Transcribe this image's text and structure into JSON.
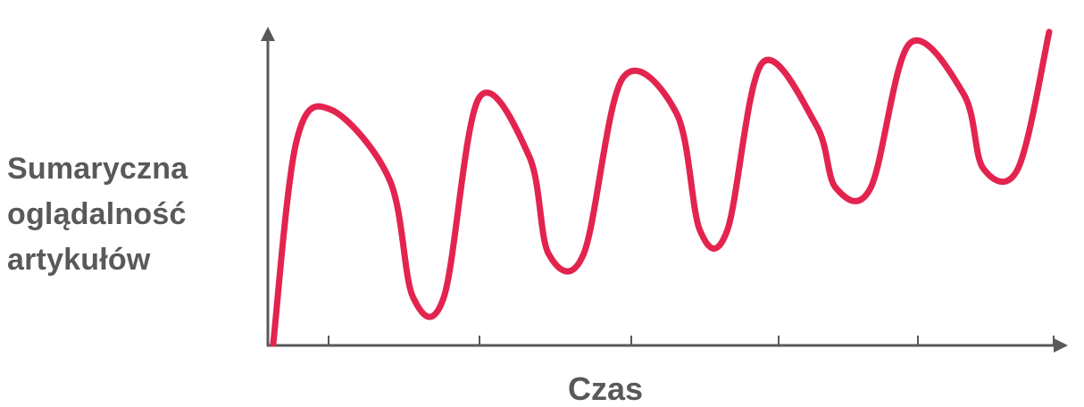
{
  "chart_data": {
    "type": "line",
    "title": "",
    "ylabel_lines": [
      "Sumaryczna",
      "oglądalność",
      "artykułów"
    ],
    "xlabel": "Czas",
    "x_ticks": 5,
    "series": [
      {
        "color": "#e3244f",
        "x": [
          0,
          0.6,
          1.5,
          3.0,
          3.6,
          4.4,
          5.3,
          6.6,
          7.1,
          8.0,
          9.0,
          10.4,
          11.0,
          11.7,
          12.6,
          14.0,
          14.5,
          15.4,
          16.4,
          17.8,
          18.3,
          19.2,
          20.0
        ],
        "values": [
          0,
          52,
          60,
          42,
          12,
          12,
          63,
          48,
          23,
          23,
          68,
          59,
          29,
          29,
          72,
          56,
          40,
          40,
          77,
          64,
          45,
          45,
          80
        ]
      }
    ],
    "xlim": [
      0,
      20
    ],
    "ylim": [
      0,
      85
    ],
    "grid": false,
    "legend": "none"
  },
  "colors": {
    "axis": "#595959",
    "line": "#e3244f",
    "text": "#595959"
  }
}
